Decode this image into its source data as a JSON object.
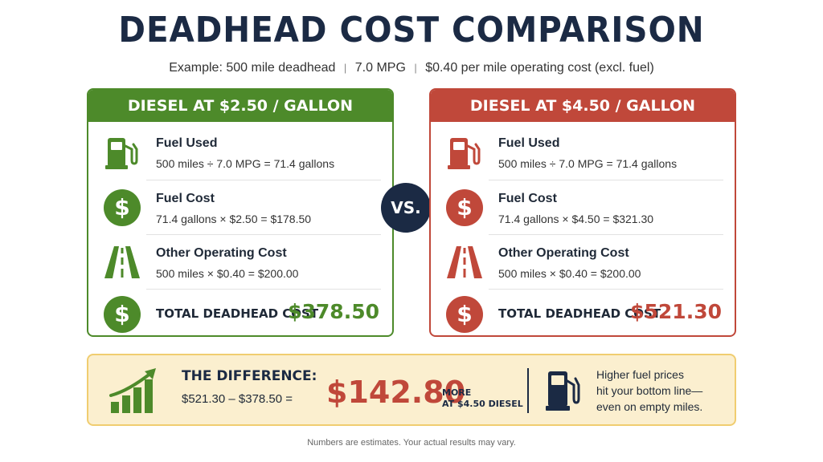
{
  "title": "DEADHEAD COST COMPARISON",
  "subtitle": {
    "part1": "Example: 500 mile deadhead",
    "sep1": "|",
    "part2": "7.0 MPG",
    "sep2": "|",
    "part3": "$0.40 per mile operating cost (excl. fuel)"
  },
  "colors": {
    "green": "#4d8a2a",
    "red": "#c0483a",
    "navy": "#1b2a44",
    "gold": "#f0cd70"
  },
  "cards": [
    {
      "header": "DIESEL AT $2.50 / GALLON",
      "rows": [
        {
          "icon": "fuel-pump-icon",
          "label": "Fuel Used",
          "formula": "500 miles ÷ 7.0 MPG = 71.4 gallons"
        },
        {
          "icon": "dollar-icon",
          "label": "Fuel Cost",
          "formula": "71.4 gallons × $2.50 = $178.50"
        },
        {
          "icon": "road-icon",
          "label": "Other Operating Cost",
          "formula": "500 miles × $0.40 = $200.00"
        }
      ],
      "total": {
        "icon": "dollar-icon",
        "label": "TOTAL DEADHEAD COST",
        "value": "$378.50"
      }
    },
    {
      "header": "DIESEL AT $4.50 / GALLON",
      "rows": [
        {
          "icon": "fuel-pump-icon",
          "label": "Fuel Used",
          "formula": "500 miles ÷ 7.0 MPG = 71.4 gallons"
        },
        {
          "icon": "dollar-icon",
          "label": "Fuel Cost",
          "formula": "71.4 gallons × $4.50 = $321.30"
        },
        {
          "icon": "road-icon",
          "label": "Other Operating Cost",
          "formula": "500 miles × $0.40 = $200.00"
        }
      ],
      "total": {
        "icon": "dollar-icon",
        "label": "TOTAL DEADHEAD COST",
        "value": "$521.30"
      }
    }
  ],
  "vs": "VS.",
  "difference": {
    "icon": "growth-chart-icon",
    "title": "THE DIFFERENCE:",
    "formula": "$521.30 – $378.50 =",
    "amount": "$142.80",
    "more_line1": "MORE",
    "more_line2": "AT $4.50 DIESEL",
    "pump_icon": "fuel-pump-icon",
    "note_line1": "Higher fuel prices",
    "note_line2": "hit your bottom line—",
    "note_line3": "even on empty miles."
  },
  "footnote": "Numbers are estimates. Your actual results may vary."
}
